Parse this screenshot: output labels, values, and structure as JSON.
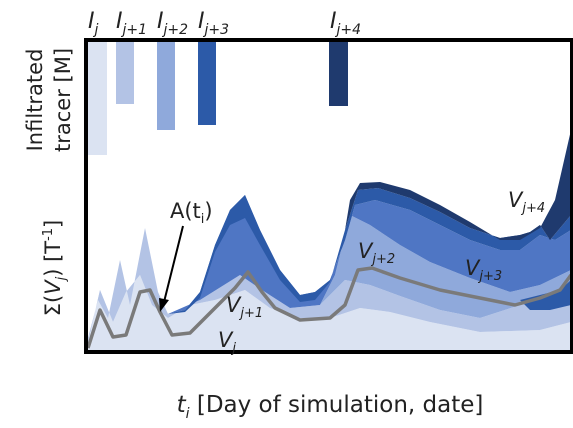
{
  "pulse_labels": {
    "i_j": {
      "base": "I",
      "sub": "j"
    },
    "i_j1": {
      "base": "I",
      "sub": "j+1"
    },
    "i_j2": {
      "base": "I",
      "sub": "j+2"
    },
    "i_j3": {
      "base": "I",
      "sub": "j+3"
    },
    "i_j4": {
      "base": "I",
      "sub": "j+4"
    }
  },
  "y_axis": {
    "top_line1": "Infiltrated",
    "top_line2": "tracer [M]",
    "bottom_prefix": "Σ(",
    "bottom_var": "V",
    "bottom_sub": "j",
    "bottom_suffix": ") [T",
    "bottom_sup": "-1",
    "bottom_close": "]"
  },
  "x_axis": {
    "var": "t",
    "sub": "i",
    "rest": " [Day of simulation, date]"
  },
  "annotation": {
    "prefix": "A(t",
    "sub": "i",
    "suffix": ")"
  },
  "volume_labels": {
    "v_j": {
      "base": "V",
      "sub": "j"
    },
    "v_j1": {
      "base": "V",
      "sub": "j+1"
    },
    "v_j2": {
      "base": "V",
      "sub": "j+2"
    },
    "v_j3": {
      "base": "V",
      "sub": "j+3"
    },
    "v_j4": {
      "base": "V",
      "sub": "j+4"
    }
  },
  "colors": {
    "c0": "#dbe3f2",
    "c1": "#b3c3e5",
    "c2": "#8fa9db",
    "c3": "#4f76c4",
    "c4": "#2c5aa8",
    "c5": "#1f3a6e",
    "line": "#7a7a7a",
    "frame": "#000000"
  }
}
